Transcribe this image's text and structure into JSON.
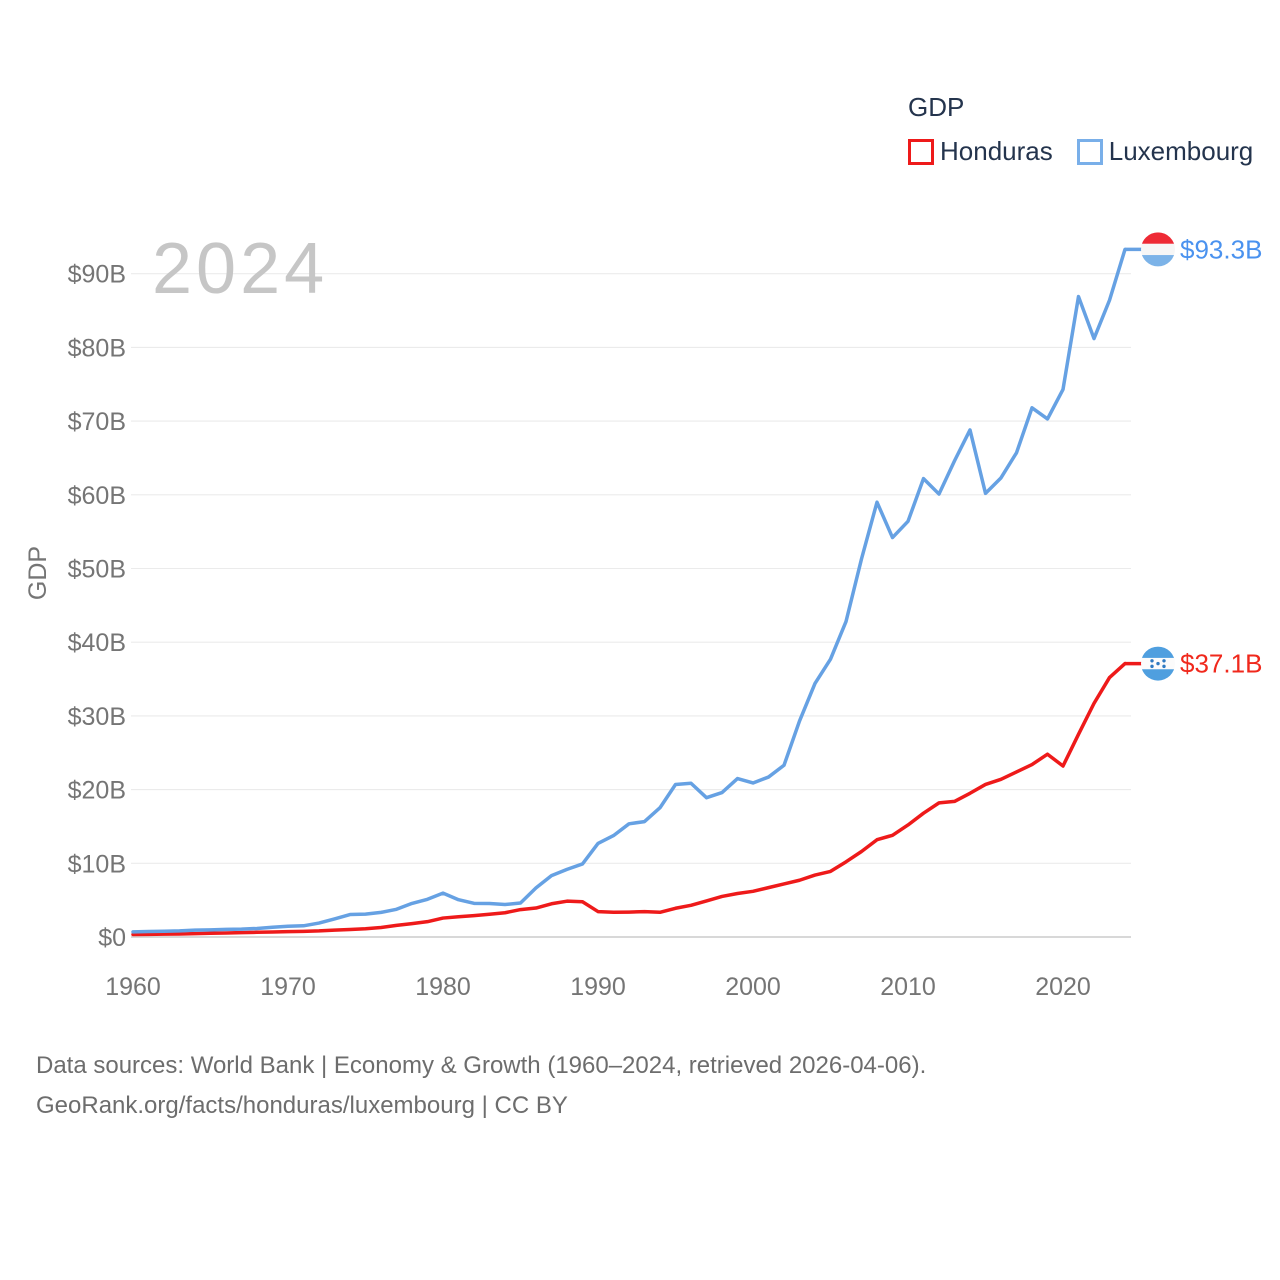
{
  "watermark": "2024",
  "legend": {
    "title": "GDP",
    "items": [
      {
        "label": "Honduras",
        "color": "#ee1a1a"
      },
      {
        "label": "Luxembourg",
        "color": "#79afe9"
      }
    ]
  },
  "source": {
    "line1": "Data sources: World Bank | Economy & Growth (1960–2024, retrieved 2026-04-06).",
    "line2": "GeoRank.org/facts/honduras/luxembourg | CC BY"
  },
  "chart_data": {
    "type": "line",
    "title": "GDP",
    "ylabel": "GDP",
    "xlabel": "",
    "xlim": [
      1960,
      2024
    ],
    "ylim": [
      0,
      95
    ],
    "grid": true,
    "legend_position": "top-right",
    "colors": {
      "grid": "#ebebeb",
      "baseline": "#cccccc",
      "axis_text": "#757575"
    },
    "x_ticks": [
      {
        "year": 1960,
        "label": "1960"
      },
      {
        "year": 1970,
        "label": "1970"
      },
      {
        "year": 1980,
        "label": "1980"
      },
      {
        "year": 1990,
        "label": "1990"
      },
      {
        "year": 2000,
        "label": "2000"
      },
      {
        "year": 2010,
        "label": "2010"
      },
      {
        "year": 2020,
        "label": "2020"
      }
    ],
    "y_ticks": [
      {
        "value": 0,
        "label": "$0"
      },
      {
        "value": 10,
        "label": "$10B"
      },
      {
        "value": 20,
        "label": "$20B"
      },
      {
        "value": 30,
        "label": "$30B"
      },
      {
        "value": 40,
        "label": "$40B"
      },
      {
        "value": 50,
        "label": "$50B"
      },
      {
        "value": 60,
        "label": "$60B"
      },
      {
        "value": 70,
        "label": "$70B"
      },
      {
        "value": 80,
        "label": "$80B"
      },
      {
        "value": 90,
        "label": "$90B"
      }
    ],
    "x": [
      1960,
      1961,
      1962,
      1963,
      1964,
      1965,
      1966,
      1967,
      1968,
      1969,
      1970,
      1971,
      1972,
      1973,
      1974,
      1975,
      1976,
      1977,
      1978,
      1979,
      1980,
      1981,
      1982,
      1983,
      1984,
      1985,
      1986,
      1987,
      1988,
      1989,
      1990,
      1991,
      1992,
      1993,
      1994,
      1995,
      1996,
      1997,
      1998,
      1999,
      2000,
      2001,
      2002,
      2003,
      2004,
      2005,
      2006,
      2007,
      2008,
      2009,
      2010,
      2011,
      2012,
      2013,
      2014,
      2015,
      2016,
      2017,
      2018,
      2019,
      2020,
      2021,
      2022,
      2023,
      2024
    ],
    "series": [
      {
        "id": "honduras",
        "name": "Honduras",
        "color": "#ee1a1a",
        "label_color": "#f0281c",
        "end_label": "$37.1B",
        "end_value_billion": 37.1,
        "flag_colors": {
          "top": "#4f9fdf",
          "middle": "#fbfbfb",
          "bottom": "#4f9fdf",
          "stars": "#2f7ac2"
        },
        "values": [
          0.34,
          0.36,
          0.39,
          0.41,
          0.46,
          0.51,
          0.55,
          0.6,
          0.64,
          0.67,
          0.73,
          0.77,
          0.83,
          0.94,
          1.02,
          1.12,
          1.29,
          1.58,
          1.82,
          2.08,
          2.57,
          2.75,
          2.9,
          3.08,
          3.29,
          3.72,
          3.93,
          4.51,
          4.86,
          4.78,
          3.45,
          3.35,
          3.38,
          3.45,
          3.35,
          3.9,
          4.3,
          4.9,
          5.5,
          5.9,
          6.2,
          6.7,
          7.2,
          7.7,
          8.4,
          8.9,
          10.2,
          11.6,
          13.2,
          13.8,
          15.2,
          16.8,
          18.2,
          18.4,
          19.5,
          20.7,
          21.4,
          22.4,
          23.4,
          24.8,
          23.2,
          27.5,
          31.7,
          35.2,
          37.1
        ]
      },
      {
        "id": "luxembourg",
        "name": "Luxembourg",
        "color": "#66a1e3",
        "label_color": "#4a92ef",
        "end_label": "$93.3B",
        "end_value_billion": 93.3,
        "flag_colors": {
          "top": "#ee2a35",
          "middle": "#f6f6f6",
          "bottom": "#7cb3e8"
        },
        "values": [
          0.7,
          0.74,
          0.78,
          0.83,
          0.94,
          0.97,
          1.03,
          1.07,
          1.16,
          1.32,
          1.46,
          1.52,
          1.89,
          2.45,
          3.05,
          3.1,
          3.34,
          3.76,
          4.56,
          5.12,
          5.95,
          5.06,
          4.57,
          4.55,
          4.41,
          4.62,
          6.66,
          8.33,
          9.18,
          9.91,
          12.7,
          13.76,
          15.36,
          15.66,
          17.54,
          20.69,
          20.86,
          18.9,
          19.6,
          21.5,
          20.9,
          21.7,
          23.3,
          29.3,
          34.4,
          37.7,
          42.8,
          51.3,
          59.0,
          54.2,
          56.4,
          62.2,
          60.1,
          64.6,
          68.8,
          60.2,
          62.3,
          65.7,
          71.8,
          70.3,
          74.3,
          86.9,
          81.2,
          86.4,
          93.3
        ]
      }
    ]
  }
}
